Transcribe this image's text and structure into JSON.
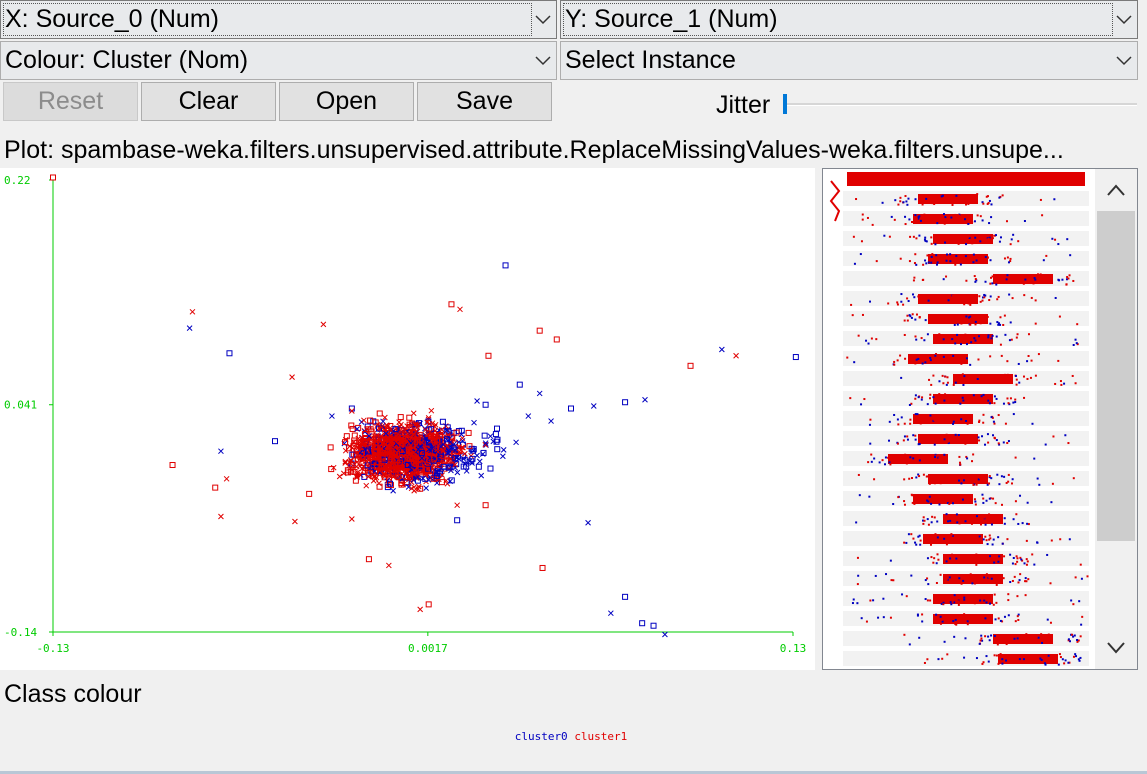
{
  "x_selector": {
    "label": "X: Source_0 (Num)"
  },
  "y_selector": {
    "label": "Y: Source_1 (Num)"
  },
  "colour_selector": {
    "label": "Colour: Cluster (Nom)"
  },
  "instance_selector": {
    "label": "Select Instance"
  },
  "buttons": {
    "reset": "Reset",
    "clear": "Clear",
    "open": "Open",
    "save": "Save"
  },
  "jitter": {
    "label": "Jitter",
    "value": 0
  },
  "plot_title": "Plot: spambase-weka.filters.unsupervised.attribute.ReplaceMissingValues-weka.filters.unsupe...",
  "class_colour_title": "Class colour",
  "legend": [
    {
      "name": "cluster0",
      "color": "#0000c0"
    },
    {
      "name": "cluster1",
      "color": "#e00000"
    }
  ],
  "colors": {
    "axis": "#00cc00",
    "cluster0": "#0000c0",
    "cluster1": "#e00000"
  },
  "chart_data": {
    "type": "scatter",
    "xlim": [
      -0.13,
      0.13
    ],
    "ylim": [
      -0.14,
      0.22
    ],
    "x_ticks": [
      "-0.13",
      "0.0017",
      "0.13"
    ],
    "y_ticks": [
      "0.22",
      "0.041",
      "-0.14"
    ],
    "series": [
      {
        "name": "cluster0",
        "color": "#0000c0",
        "points": [
          [
            0.029,
            0.152
          ],
          [
            -0.082,
            0.102
          ],
          [
            -0.068,
            0.082
          ],
          [
            0.105,
            0.085
          ],
          [
            0.131,
            0.079
          ],
          [
            0.078,
            0.045
          ],
          [
            0.071,
            0.043
          ],
          [
            0.06,
            0.04
          ],
          [
            0.052,
            0.038
          ],
          [
            0.041,
            0.05
          ],
          [
            0.034,
            0.057
          ],
          [
            -0.032,
            0.032
          ],
          [
            -0.025,
            0.038
          ],
          [
            0.019,
            0.044
          ],
          [
            -0.052,
            0.012
          ],
          [
            -0.071,
            0.004
          ],
          [
            0.012,
            -0.051
          ],
          [
            0.058,
            -0.053
          ],
          [
            0.071,
            -0.112
          ],
          [
            0.066,
            -0.125
          ],
          [
            0.077,
            -0.133
          ],
          [
            0.085,
            -0.142
          ],
          [
            0.081,
            -0.135
          ],
          [
            -0.013,
            0.018
          ],
          [
            0.026,
            0.022
          ],
          [
            0.045,
            0.028
          ],
          [
            0.022,
            0.041
          ],
          [
            0.037,
            0.032
          ]
        ]
      },
      {
        "name": "cluster1",
        "color": "#e00000",
        "points": [
          [
            -0.13,
            0.222
          ],
          [
            -0.081,
            0.115
          ],
          [
            0.01,
            0.121
          ],
          [
            0.013,
            0.117
          ],
          [
            0.041,
            0.1
          ],
          [
            -0.035,
            0.105
          ],
          [
            0.047,
            0.093
          ],
          [
            -0.046,
            0.063
          ],
          [
            0.023,
            0.08
          ],
          [
            0.11,
            0.08
          ],
          [
            0.094,
            0.072
          ],
          [
            -0.071,
            -0.048
          ],
          [
            -0.073,
            -0.025
          ],
          [
            -0.025,
            -0.05
          ],
          [
            -0.019,
            -0.082
          ],
          [
            -0.012,
            -0.087
          ],
          [
            0.042,
            -0.089
          ],
          [
            -0.001,
            -0.122
          ],
          [
            0.002,
            -0.118
          ],
          [
            -0.045,
            -0.052
          ],
          [
            -0.04,
            -0.03
          ],
          [
            0.012,
            -0.039
          ],
          [
            0.022,
            -0.039
          ],
          [
            -0.025,
            0.036
          ],
          [
            -0.088,
            -0.007
          ],
          [
            -0.069,
            -0.018
          ]
        ]
      }
    ]
  }
}
